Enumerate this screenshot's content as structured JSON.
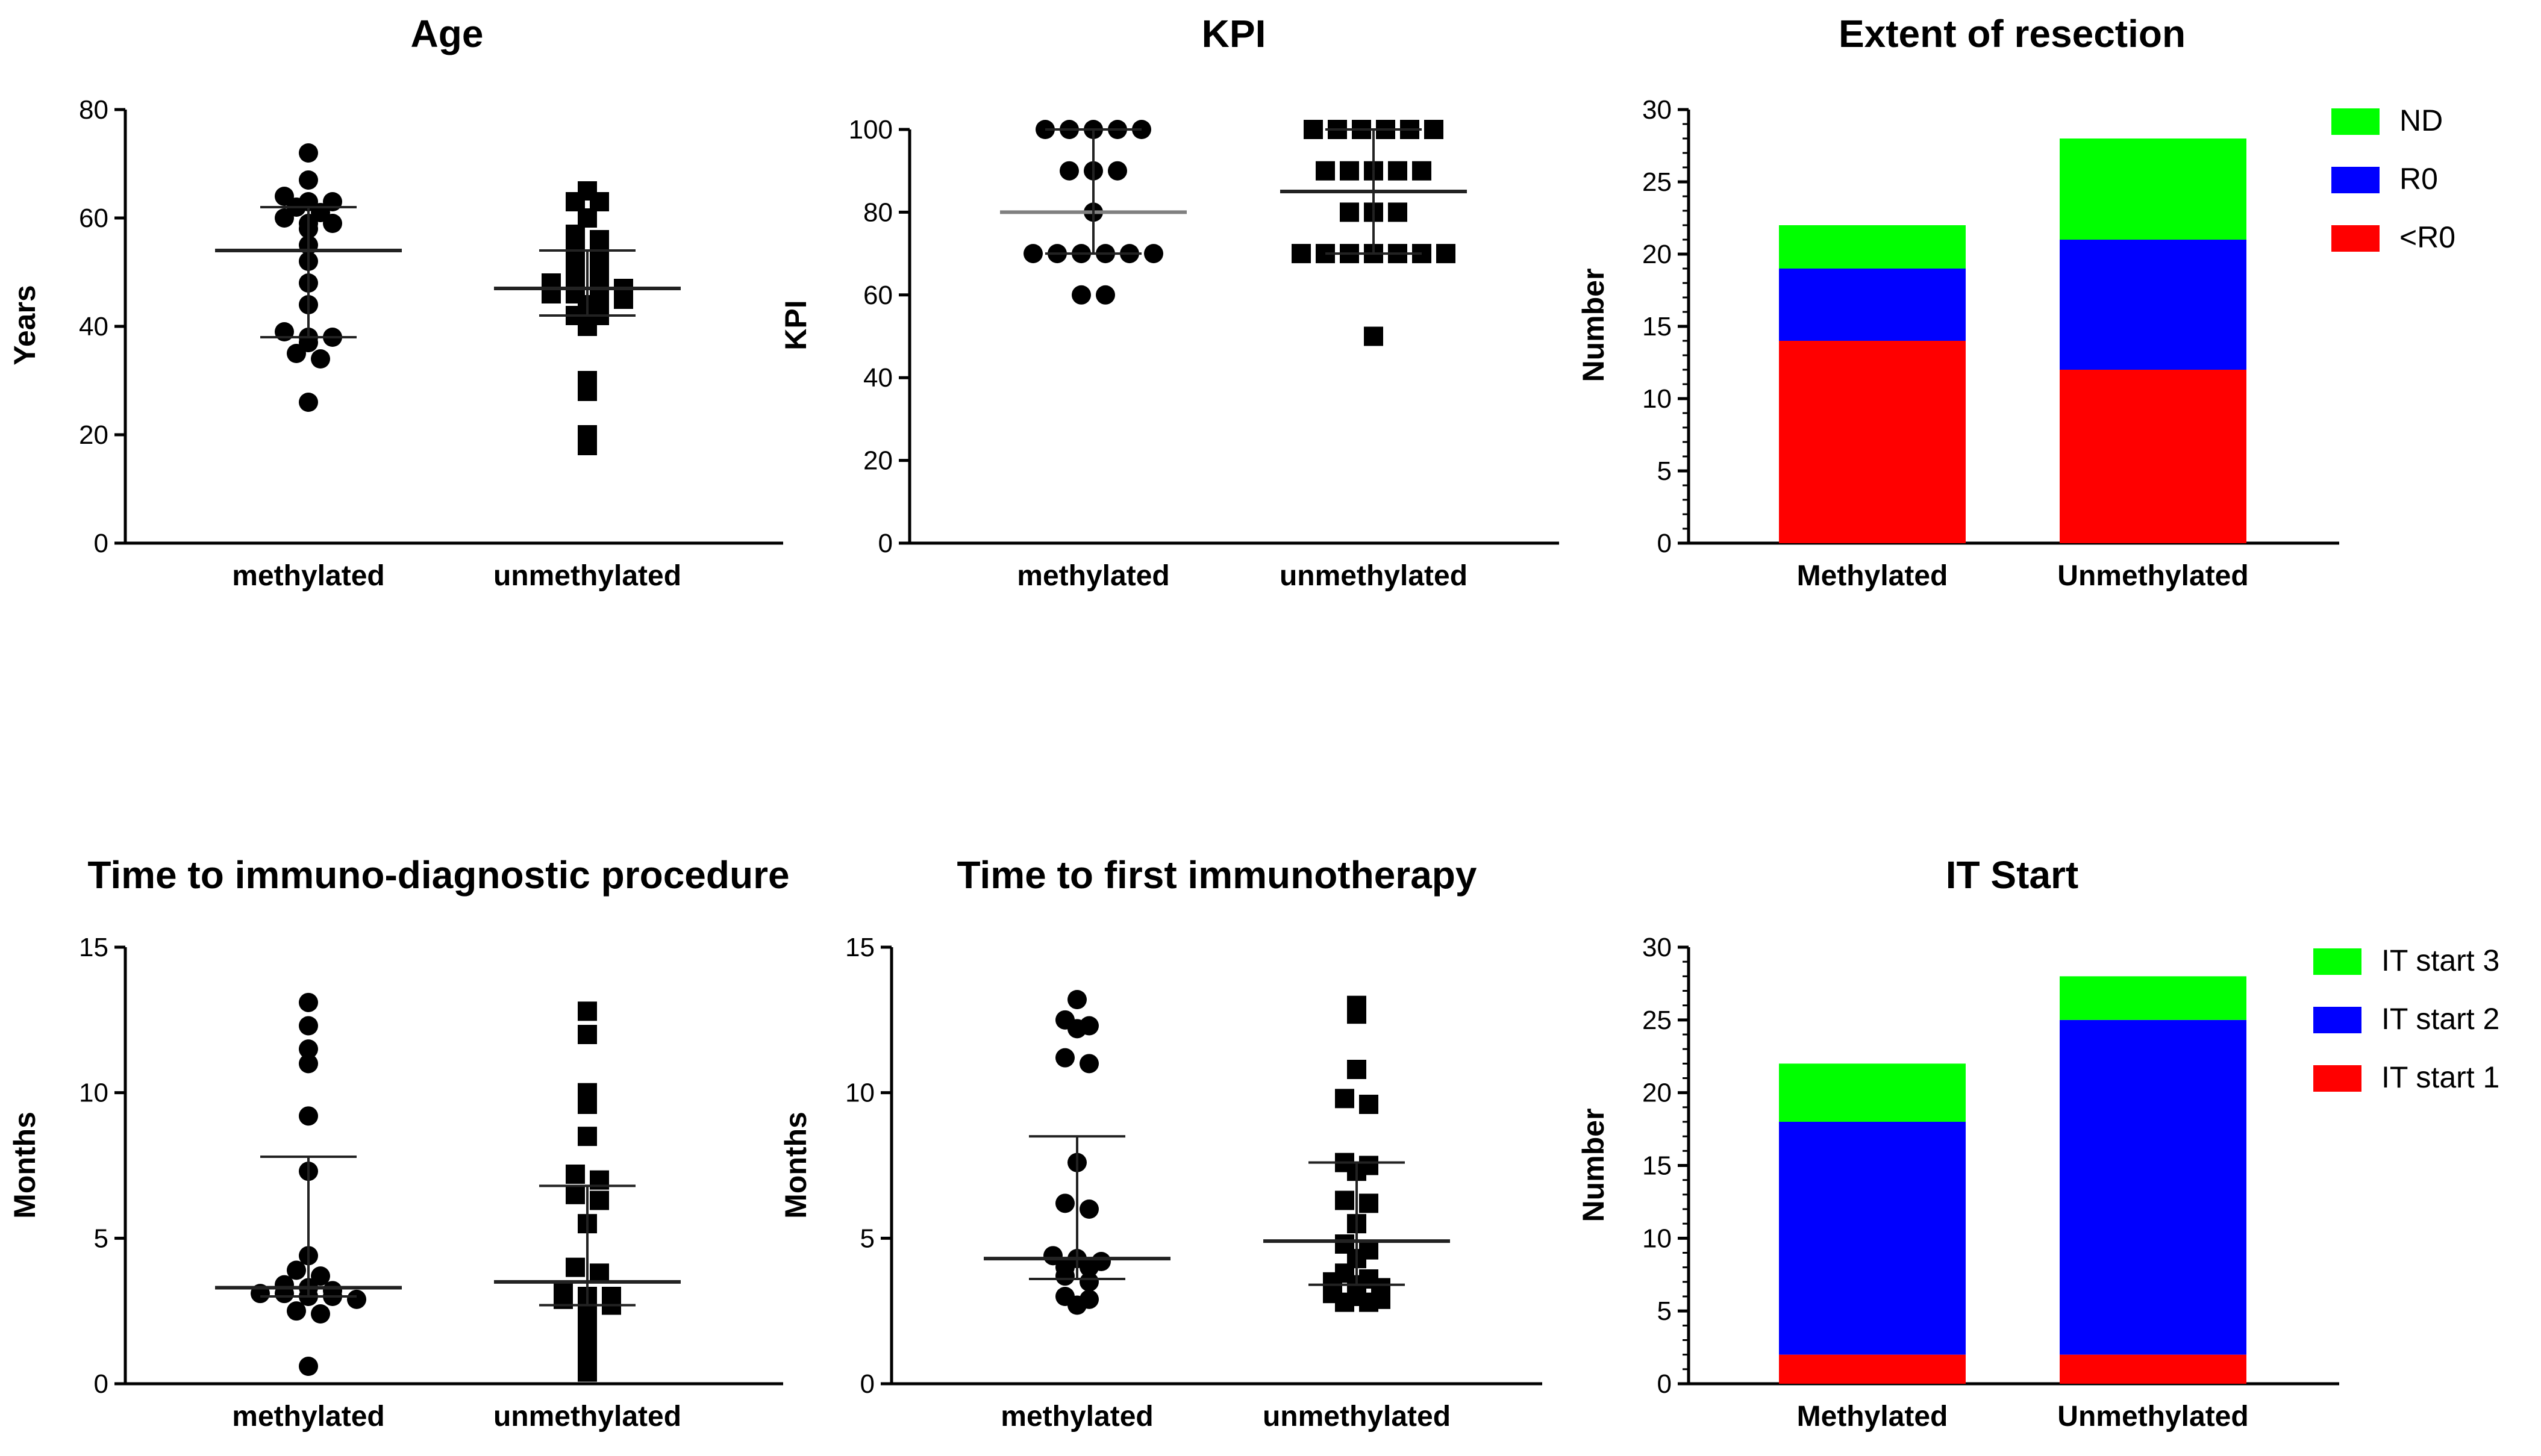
{
  "chart_data": [
    {
      "type": "scatter",
      "title": "Age",
      "ylabel": "Years",
      "ylim": [
        0,
        80
      ],
      "yticks": [
        0,
        20,
        40,
        60,
        80
      ],
      "categories": [
        "methylated",
        "unmethylated"
      ],
      "series": [
        {
          "name": "methylated",
          "marker": "circle",
          "values": [
            72,
            67,
            64,
            63,
            63,
            62,
            61,
            60,
            59,
            59,
            58,
            55,
            52,
            48,
            44,
            39,
            38,
            38,
            37,
            35,
            34,
            26
          ],
          "center": 54,
          "error_low": 38,
          "error_high": 62
        },
        {
          "name": "unmethylated",
          "marker": "square",
          "values": [
            65,
            63,
            63,
            60,
            57,
            56,
            54,
            53,
            52,
            52,
            50,
            49,
            48,
            47,
            47,
            47,
            46,
            46,
            45,
            45,
            44,
            42,
            42,
            40,
            30,
            28,
            20,
            18
          ],
          "center": 47,
          "error_low": 42,
          "error_high": 54
        }
      ]
    },
    {
      "type": "scatter",
      "title": "KPI",
      "ylabel": "KPI",
      "ylim": [
        0,
        100
      ],
      "yticks": [
        0,
        20,
        40,
        60,
        80,
        100
      ],
      "categories": [
        "methylated",
        "unmethylated"
      ],
      "series": [
        {
          "name": "methylated",
          "marker": "circle",
          "values": [
            100,
            100,
            100,
            100,
            100,
            90,
            90,
            90,
            80,
            70,
            70,
            70,
            70,
            70,
            70,
            60,
            60
          ],
          "center": 80,
          "error_low": 70,
          "error_high": 100
        },
        {
          "name": "unmethylated",
          "marker": "square",
          "values": [
            100,
            100,
            100,
            100,
            100,
            100,
            90,
            90,
            90,
            90,
            90,
            80,
            80,
            80,
            70,
            70,
            70,
            70,
            70,
            70,
            70,
            50
          ],
          "center": 85,
          "error_low": 70,
          "error_high": 100
        }
      ]
    },
    {
      "type": "bar",
      "stacked": true,
      "title": "Extent of resection",
      "ylabel": "Number",
      "ylim": [
        0,
        30
      ],
      "yticks": [
        0,
        5,
        10,
        15,
        20,
        25,
        30
      ],
      "categories": [
        "Methylated",
        "Unmethylated"
      ],
      "series": [
        {
          "name": "<R0",
          "color": "#ff0000",
          "values": [
            14,
            12
          ]
        },
        {
          "name": "R0",
          "color": "#0000ff",
          "values": [
            5,
            9
          ]
        },
        {
          "name": "ND",
          "color": "#00ff00",
          "values": [
            3,
            7
          ]
        }
      ],
      "legend": [
        "ND",
        "R0",
        "<R0"
      ]
    },
    {
      "type": "scatter",
      "title": "Time to immuno-diagnostic procedure",
      "ylabel": "Months",
      "ylim": [
        0,
        15
      ],
      "yticks": [
        0,
        5,
        10,
        15
      ],
      "categories": [
        "methylated",
        "unmethylated"
      ],
      "series": [
        {
          "name": "methylated",
          "marker": "circle",
          "values": [
            13.1,
            12.3,
            11.5,
            11.0,
            9.2,
            7.3,
            4.4,
            3.9,
            3.7,
            3.4,
            3.3,
            3.2,
            3.1,
            3.1,
            3.0,
            3.0,
            2.9,
            2.5,
            2.4,
            0.6
          ],
          "center": 3.3,
          "error_low": 3.0,
          "error_high": 7.8
        },
        {
          "name": "unmethylated",
          "marker": "square",
          "values": [
            12.8,
            12.0,
            10.0,
            9.6,
            8.5,
            7.2,
            7.0,
            6.5,
            6.3,
            5.5,
            4.0,
            3.8,
            3.2,
            3.0,
            3.0,
            2.9,
            2.8,
            2.7,
            2.5,
            2.2,
            1.9,
            1.6,
            1.1,
            0.7,
            0.4
          ],
          "center": 3.5,
          "error_low": 2.7,
          "error_high": 6.8
        }
      ]
    },
    {
      "type": "scatter",
      "title": "Time to first immunotherapy",
      "ylabel": "Months",
      "ylim": [
        0,
        15
      ],
      "yticks": [
        0,
        5,
        10,
        15
      ],
      "categories": [
        "methylated",
        "unmethylated"
      ],
      "series": [
        {
          "name": "methylated",
          "marker": "circle",
          "values": [
            13.2,
            12.5,
            12.3,
            12.2,
            11.2,
            11.0,
            7.6,
            6.2,
            6.0,
            4.4,
            4.3,
            4.2,
            4.0,
            4.0,
            3.7,
            3.5,
            3.0,
            2.9,
            2.7
          ],
          "center": 4.3,
          "error_low": 3.6,
          "error_high": 8.5
        },
        {
          "name": "unmethylated",
          "marker": "square",
          "values": [
            13.0,
            12.7,
            10.8,
            9.8,
            9.6,
            7.6,
            7.5,
            7.3,
            6.3,
            6.2,
            5.5,
            4.8,
            4.6,
            4.3,
            3.8,
            3.6,
            3.5,
            3.4,
            3.3,
            3.1,
            3.0,
            2.9,
            2.8,
            2.8
          ],
          "center": 4.9,
          "error_low": 3.4,
          "error_high": 7.6
        }
      ]
    },
    {
      "type": "bar",
      "stacked": true,
      "title": "IT Start",
      "ylabel": "Number",
      "ylim": [
        0,
        30
      ],
      "yticks": [
        0,
        5,
        10,
        15,
        20,
        25,
        30
      ],
      "categories": [
        "Methylated",
        "Unmethylated"
      ],
      "series": [
        {
          "name": "IT start 1",
          "color": "#ff0000",
          "values": [
            2,
            2
          ]
        },
        {
          "name": "IT start 2",
          "color": "#0000ff",
          "values": [
            16,
            23
          ]
        },
        {
          "name": "IT start 3",
          "color": "#00ff00",
          "values": [
            4,
            3
          ]
        }
      ],
      "legend": [
        "IT start 3",
        "IT start 2",
        "IT start 1"
      ]
    }
  ]
}
